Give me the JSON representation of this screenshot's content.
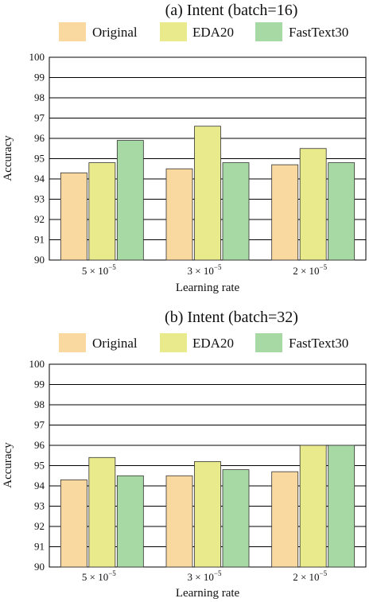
{
  "chart_data": [
    {
      "type": "bar",
      "title": "(a) Intent (batch=16)",
      "xlabel": "Learning rate",
      "ylabel": "Accuracy",
      "ylim": [
        90,
        100
      ],
      "yticks": [
        "90",
        "91",
        "92",
        "93",
        "94",
        "95",
        "96",
        "97",
        "98",
        "99",
        "100"
      ],
      "categories": [
        {
          "base": "5 × 10",
          "exp": "−5"
        },
        {
          "base": "3 × 10",
          "exp": "−5"
        },
        {
          "base": "2 × 10",
          "exp": "−5"
        }
      ],
      "series": [
        {
          "name": "Original",
          "values": [
            94.3,
            94.5,
            94.7
          ]
        },
        {
          "name": "EDA20",
          "values": [
            94.8,
            96.6,
            95.5
          ]
        },
        {
          "name": "FastText30",
          "values": [
            95.9,
            94.8,
            94.8
          ]
        }
      ],
      "grid": true,
      "legend": "top"
    },
    {
      "type": "bar",
      "title": "(b) Intent (batch=32)",
      "xlabel": "Learning rate",
      "ylabel": "Accuracy",
      "ylim": [
        90,
        100
      ],
      "yticks": [
        "90",
        "91",
        "92",
        "93",
        "94",
        "95",
        "96",
        "97",
        "98",
        "99",
        "100"
      ],
      "categories": [
        {
          "base": "5 × 10",
          "exp": "−5"
        },
        {
          "base": "3 × 10",
          "exp": "−5"
        },
        {
          "base": "2 × 10",
          "exp": "−5"
        }
      ],
      "series": [
        {
          "name": "Original",
          "values": [
            94.3,
            94.5,
            94.7
          ]
        },
        {
          "name": "EDA20",
          "values": [
            95.4,
            95.2,
            96.0
          ]
        },
        {
          "name": "FastText30",
          "values": [
            94.5,
            94.8,
            96.0
          ]
        }
      ],
      "grid": true,
      "legend": "top"
    }
  ],
  "colors": {
    "Original": "#fad9a0",
    "EDA20": "#e8ea8c",
    "FastText30": "#a7d9a4",
    "grid": "#000000"
  }
}
